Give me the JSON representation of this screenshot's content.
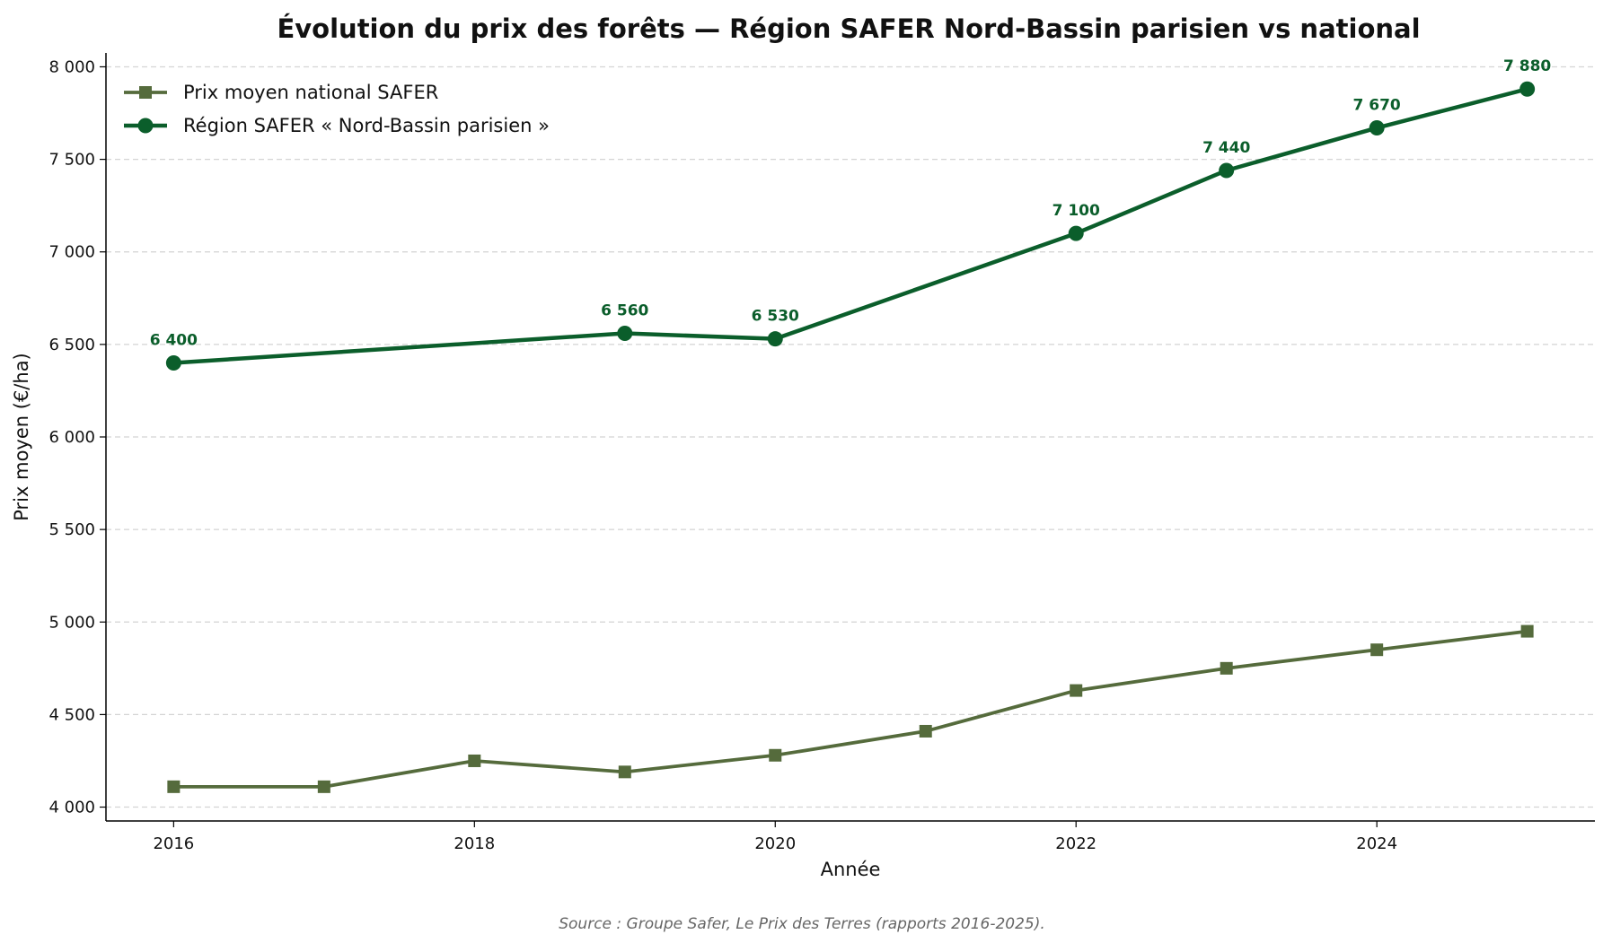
{
  "chart_data": {
    "type": "line",
    "title": "Évolution du prix des forêts — Région SAFER Nord-Bassin parisien vs national",
    "xlabel": "Année",
    "ylabel": "Prix moyen (€/ha)",
    "source": "Source : Groupe Safer, Le Prix des Terres (rapports 2016-2025).",
    "xlim": [
      2015.55,
      2025.45
    ],
    "ylim": [
      3925,
      8075
    ],
    "xticks": [
      2016,
      2018,
      2020,
      2022,
      2024
    ],
    "xtick_labels": [
      "2016",
      "2018",
      "2020",
      "2022",
      "2024"
    ],
    "yticks": [
      4000,
      4500,
      5000,
      5500,
      6000,
      6500,
      7000,
      7500,
      8000
    ],
    "ytick_labels": [
      "4 000",
      "4 500",
      "5 000",
      "5 500",
      "6 000",
      "6 500",
      "7 000",
      "7 500",
      "8 000"
    ],
    "grid": "horizontal dashed",
    "legend_position": "top-left",
    "series": [
      {
        "name": "Prix moyen national SAFER",
        "color": "#556b3c",
        "marker": "square",
        "x": [
          2016,
          2017,
          2018,
          2019,
          2020,
          2021,
          2022,
          2023,
          2024,
          2025
        ],
        "values": [
          4110,
          4110,
          4250,
          4190,
          4280,
          4410,
          4630,
          4750,
          4850,
          4950
        ],
        "data_labels": []
      },
      {
        "name": "Région SAFER « Nord-Bassin parisien »",
        "color": "#0b5e2b",
        "marker": "circle",
        "x": [
          2016,
          2019,
          2020,
          2022,
          2023,
          2024,
          2025
        ],
        "values": [
          6400,
          6560,
          6530,
          7100,
          7440,
          7670,
          7880
        ],
        "data_labels": [
          "6 400",
          "6 560",
          "6 530",
          "7 100",
          "7 440",
          "7 670",
          "7 880"
        ]
      }
    ]
  }
}
